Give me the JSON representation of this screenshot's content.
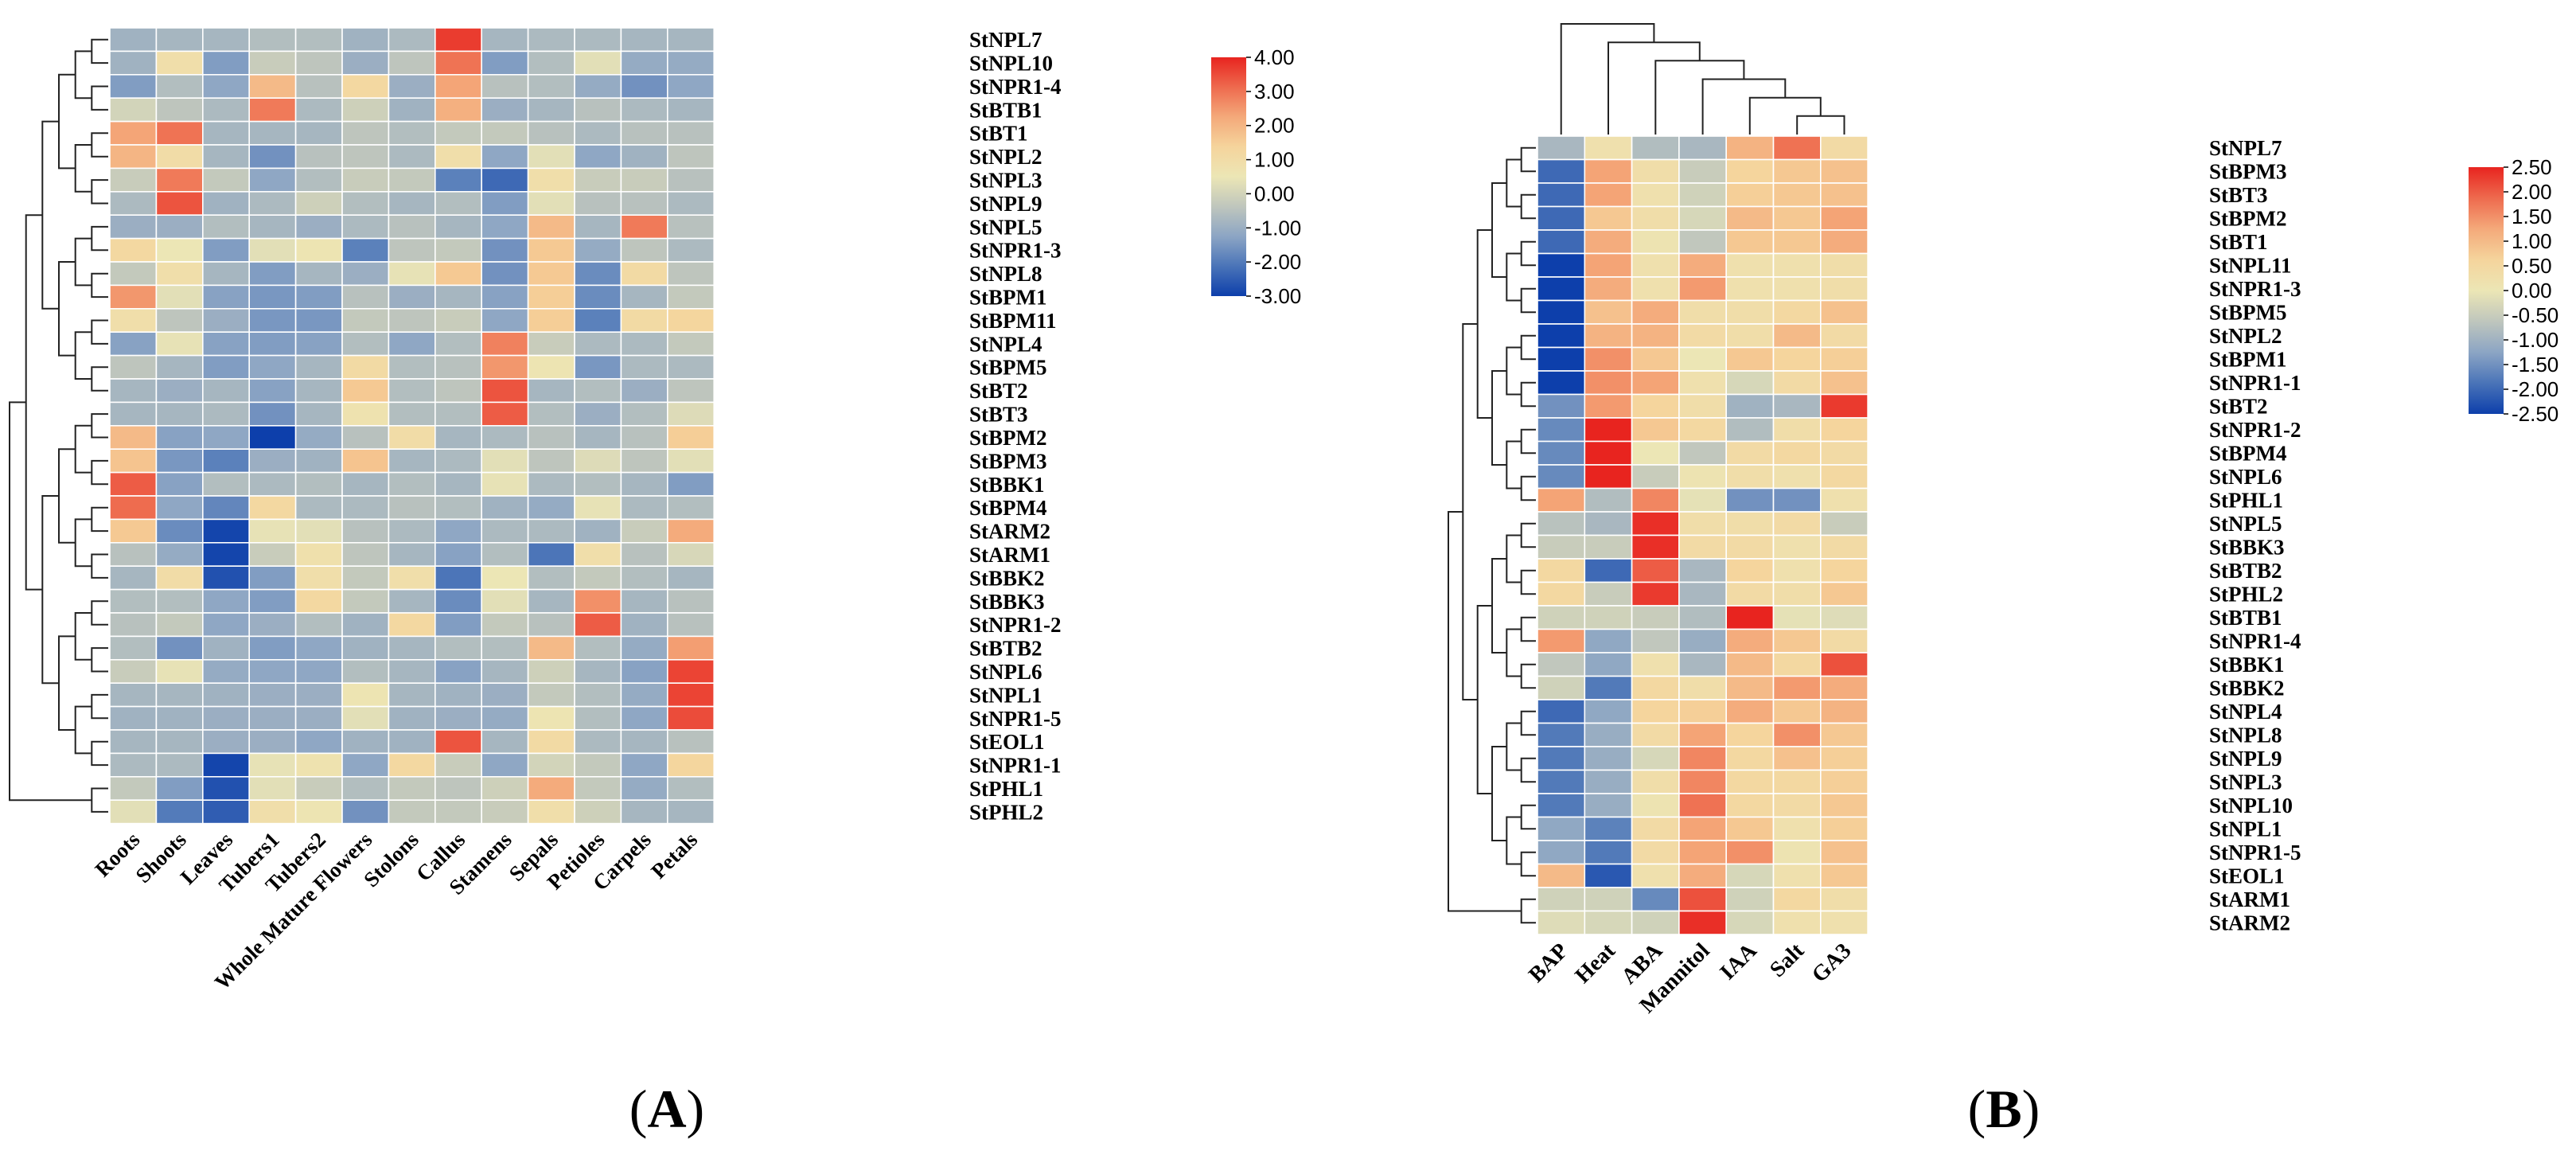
{
  "chart_data": [
    {
      "type": "heatmap",
      "panel": "(A)",
      "panel_letter": "A",
      "columns": [
        "Roots",
        "Shoots",
        "Leaves",
        "Tubers1",
        "Tubers2",
        "Whole Mature Flowers",
        "Stolons",
        "Callus",
        "Stamens",
        "Sepals",
        "Petioles",
        "Carpels",
        "Petals"
      ],
      "rows": [
        "StNPL7",
        "StNPL10",
        "StNPR1-4",
        "StBTB1",
        "StBT1",
        "StNPL2",
        "StNPL3",
        "StNPL9",
        "StNPL5",
        "StNPR1-3",
        "StNPL8",
        "StBPM1",
        "StBPM11",
        "StNPL4",
        "StBPM5",
        "StBT2",
        "StBT3",
        "StBPM2",
        "StBPM3",
        "StBBK1",
        "StBPM4",
        "StARM2",
        "StARM1",
        "StBBK2",
        "StBBK3",
        "StNPR1-2",
        "StBTB2",
        "StNPL6",
        "StNPL1",
        "StNPR1-5",
        "StEOL1",
        "StNPR1-1",
        "StPHL1",
        "StPHL2"
      ],
      "values": [
        [
          -0.9,
          -0.8,
          -0.8,
          -0.6,
          -0.6,
          -0.9,
          -0.7,
          3.7,
          -0.8,
          -0.7,
          -0.7,
          -0.8,
          -0.8
        ],
        [
          -0.9,
          0.9,
          -1.4,
          -0.2,
          -0.4,
          -1.0,
          -0.4,
          3.0,
          -1.4,
          -0.6,
          0.3,
          -1.1,
          -1.1
        ],
        [
          -1.4,
          -0.6,
          -1.2,
          1.9,
          -0.5,
          1.2,
          -1.0,
          2.3,
          -0.5,
          -0.6,
          -1.1,
          -1.6,
          -1.2
        ],
        [
          0.0,
          -0.4,
          -0.7,
          2.9,
          -0.7,
          -0.1,
          -0.9,
          2.1,
          -1.0,
          -0.8,
          -0.5,
          -0.7,
          -0.8
        ],
        [
          2.3,
          3.0,
          -0.8,
          -0.8,
          -0.8,
          -0.4,
          -0.6,
          -0.3,
          -0.3,
          -0.5,
          -0.7,
          -0.5,
          -0.5
        ],
        [
          2.0,
          1.0,
          -0.8,
          -1.6,
          -0.5,
          -0.4,
          -0.7,
          0.9,
          -1.2,
          0.3,
          -1.2,
          -0.9,
          -0.4
        ],
        [
          -0.2,
          2.9,
          -0.3,
          -1.2,
          -0.6,
          -0.2,
          -0.3,
          -1.9,
          -2.3,
          0.9,
          -0.2,
          -0.2,
          -0.5
        ],
        [
          -0.7,
          3.4,
          -0.9,
          -0.7,
          -0.1,
          -0.6,
          -0.8,
          -0.6,
          -1.4,
          0.3,
          -0.5,
          -0.5,
          -0.7
        ],
        [
          -1.0,
          -1.0,
          -0.6,
          -0.8,
          -1.0,
          -0.7,
          -0.5,
          -0.8,
          -1.2,
          1.9,
          -0.8,
          2.9,
          -0.5
        ],
        [
          1.2,
          0.5,
          -1.4,
          0.3,
          0.6,
          -1.9,
          -0.4,
          -0.3,
          -1.6,
          1.6,
          -1.1,
          -0.4,
          -0.7
        ],
        [
          -0.3,
          0.9,
          -0.8,
          -1.4,
          -0.8,
          -1.0,
          0.4,
          1.6,
          -1.6,
          1.6,
          -1.7,
          1.1,
          -0.4
        ],
        [
          2.5,
          0.3,
          -1.3,
          -1.5,
          -1.4,
          -0.5,
          -1.0,
          -0.8,
          -1.3,
          1.5,
          -1.7,
          -0.8,
          -0.3
        ],
        [
          0.9,
          -0.4,
          -1.0,
          -1.5,
          -1.5,
          -0.3,
          -0.4,
          -0.2,
          -1.2,
          1.5,
          -1.9,
          1.1,
          1.3
        ],
        [
          -1.3,
          0.4,
          -1.3,
          -1.4,
          -1.3,
          -0.6,
          -1.2,
          -0.6,
          2.8,
          -0.2,
          -0.7,
          -0.7,
          -0.3
        ],
        [
          -0.4,
          -0.8,
          -1.4,
          -1.2,
          -0.8,
          1.1,
          -0.6,
          -0.5,
          2.5,
          0.6,
          -1.5,
          -0.7,
          -0.7
        ],
        [
          -0.8,
          -1.0,
          -0.8,
          -1.3,
          -0.8,
          1.6,
          -0.6,
          -0.4,
          3.4,
          -0.8,
          -0.6,
          -1.0,
          -0.4
        ],
        [
          -0.8,
          -0.8,
          -0.7,
          -1.6,
          -0.8,
          0.7,
          -0.6,
          -0.6,
          3.3,
          -0.6,
          -1.0,
          -0.6,
          0.2
        ],
        [
          1.9,
          -1.3,
          -1.2,
          -3.0,
          -1.1,
          -0.5,
          1.0,
          -0.8,
          -0.7,
          -0.5,
          -0.8,
          -0.5,
          1.5
        ],
        [
          1.7,
          -1.5,
          -1.9,
          -1.0,
          -0.9,
          1.7,
          -0.8,
          -0.7,
          0.3,
          -0.4,
          0.2,
          -0.4,
          0.3
        ],
        [
          3.3,
          -1.3,
          -0.6,
          -0.7,
          -0.6,
          -0.8,
          -0.6,
          -0.8,
          0.4,
          -0.7,
          -0.6,
          -0.8,
          -1.4
        ],
        [
          3.1,
          -1.2,
          -1.8,
          1.2,
          -0.7,
          -0.7,
          -0.5,
          -0.6,
          -0.9,
          -1.1,
          0.4,
          -0.7,
          -0.6
        ],
        [
          1.6,
          -1.7,
          -2.9,
          0.4,
          0.3,
          -0.5,
          -0.7,
          -1.2,
          -0.7,
          -0.7,
          -0.9,
          -0.2,
          2.2
        ],
        [
          -0.5,
          -1.1,
          -2.9,
          -0.2,
          0.8,
          -0.4,
          -0.8,
          -1.3,
          -0.6,
          -2.1,
          0.9,
          -0.5,
          0.1
        ],
        [
          -0.8,
          1.0,
          -2.7,
          -1.4,
          0.9,
          -0.3,
          0.9,
          -2.1,
          0.5,
          -0.6,
          -0.3,
          -0.6,
          -0.8
        ],
        [
          -0.6,
          -0.6,
          -1.2,
          -1.4,
          1.2,
          -0.3,
          -0.8,
          -1.7,
          0.3,
          -0.8,
          2.6,
          -0.8,
          -0.5
        ],
        [
          -0.5,
          -0.3,
          -1.2,
          -1.0,
          -0.6,
          -0.9,
          1.2,
          -1.4,
          -0.3,
          -0.5,
          3.3,
          -0.9,
          -0.5
        ],
        [
          -0.6,
          -1.6,
          -0.9,
          -1.4,
          -1.2,
          -0.9,
          -0.8,
          -0.6,
          -0.6,
          1.9,
          -0.6,
          -1.1,
          2.4
        ],
        [
          -0.2,
          0.4,
          -1.1,
          -1.2,
          -1.2,
          -0.6,
          -0.8,
          -1.3,
          -0.8,
          -0.1,
          -0.8,
          -1.3,
          3.6
        ],
        [
          -0.8,
          -0.8,
          -0.9,
          -1.0,
          -1.0,
          0.6,
          -0.8,
          -0.9,
          -1.0,
          -0.3,
          -0.6,
          -1.1,
          3.6
        ],
        [
          -0.9,
          -0.9,
          -1.0,
          -1.0,
          -1.0,
          0.3,
          -0.9,
          -1.0,
          -1.1,
          0.6,
          -0.6,
          -1.2,
          3.5
        ],
        [
          -0.8,
          -0.8,
          -1.0,
          -1.0,
          -1.2,
          -0.9,
          -0.9,
          3.4,
          -0.8,
          1.1,
          -0.7,
          -0.8,
          -0.5
        ],
        [
          -0.7,
          -0.7,
          -2.9,
          0.4,
          0.7,
          -1.2,
          1.2,
          -0.2,
          -1.2,
          0.0,
          -0.3,
          -1.2,
          1.3
        ],
        [
          -0.3,
          -1.4,
          -2.7,
          0.3,
          -0.2,
          -0.6,
          -0.3,
          -0.4,
          -0.1,
          2.2,
          -0.3,
          -1.1,
          -0.6
        ],
        [
          0.3,
          -2.0,
          -2.5,
          0.9,
          0.6,
          -1.6,
          -0.3,
          -0.3,
          -0.2,
          0.9,
          -0.1,
          -0.8,
          -0.8
        ]
      ],
      "colorbar": {
        "ticks": [
          "4.00",
          "3.00",
          "2.00",
          "1.00",
          "0.00",
          "-1.00",
          "-2.00",
          "-3.00"
        ],
        "min": -3.0,
        "max": 4.0
      },
      "colormap": [
        "#0d3fab",
        "#4a74b8",
        "#8ca5c4",
        "#bfc6bd",
        "#ece6b5",
        "#f5d49c",
        "#f4a97a",
        "#ee6a4e",
        "#e8241f"
      ],
      "row_dendrogram": "left",
      "col_dendrogram": "none"
    },
    {
      "type": "heatmap",
      "panel": "(B)",
      "panel_letter": "B",
      "columns": [
        "BAP",
        "Heat",
        "ABA",
        "Mannitol",
        "IAA",
        "Salt",
        "GA3"
      ],
      "rows": [
        "StNPL7",
        "StBPM3",
        "StBT3",
        "StBPM2",
        "StBT1",
        "StNPL11",
        "StNPR1-3",
        "StBPM5",
        "StNPL2",
        "StBPM1",
        "StNPR1-1",
        "StBT2",
        "StNPR1-2",
        "StBPM4",
        "StNPL6",
        "StPHL1",
        "StNPL5",
        "StBBK3",
        "StBTB2",
        "StPHL2",
        "StBTB1",
        "StNPR1-4",
        "StBBK1",
        "StBBK2",
        "StNPL4",
        "StNPL8",
        "StNPL9",
        "StNPL3",
        "StNPL10",
        "StNPL1",
        "StNPR1-5",
        "StEOL1",
        "StARM1",
        "StARM2"
      ],
      "values": [
        [
          -0.9,
          0.2,
          -0.8,
          -0.9,
          1.1,
          1.8,
          0.4
        ],
        [
          -2.0,
          1.3,
          0.3,
          -0.5,
          0.6,
          0.8,
          0.9
        ],
        [
          -2.0,
          1.3,
          0.2,
          -0.4,
          0.7,
          0.8,
          0.9
        ],
        [
          -2.0,
          0.8,
          0.3,
          -0.3,
          1.0,
          0.8,
          1.3
        ],
        [
          -2.0,
          1.2,
          0.1,
          -0.6,
          0.8,
          0.8,
          1.2
        ],
        [
          -2.5,
          1.3,
          0.2,
          1.2,
          0.2,
          0.2,
          0.3
        ],
        [
          -2.5,
          1.2,
          0.2,
          1.4,
          0.2,
          0.2,
          0.3
        ],
        [
          -2.5,
          0.9,
          1.2,
          0.3,
          0.3,
          0.5,
          0.9
        ],
        [
          -2.5,
          1.1,
          1.1,
          0.4,
          0.3,
          1.0,
          0.4
        ],
        [
          -2.5,
          1.5,
          0.8,
          0.0,
          0.8,
          0.6,
          0.7
        ],
        [
          -2.5,
          1.5,
          1.3,
          0.2,
          -0.3,
          0.4,
          0.9
        ],
        [
          -1.5,
          1.4,
          0.6,
          0.3,
          -1.0,
          -0.9,
          2.3
        ],
        [
          -1.6,
          2.5,
          0.8,
          0.5,
          -0.8,
          0.3,
          0.6
        ],
        [
          -1.6,
          2.5,
          0.0,
          -0.6,
          0.4,
          0.5,
          0.4
        ],
        [
          -1.6,
          2.5,
          -0.5,
          0.1,
          0.3,
          0.2,
          0.5
        ],
        [
          1.3,
          -0.8,
          1.6,
          -0.1,
          -1.5,
          -1.5,
          0.2
        ],
        [
          -0.7,
          -0.9,
          2.4,
          0.3,
          0.3,
          0.4,
          -0.5
        ],
        [
          -0.5,
          -0.5,
          2.4,
          0.4,
          0.4,
          0.2,
          0.4
        ],
        [
          0.5,
          -2.0,
          2.0,
          -0.9,
          0.6,
          0.2,
          0.6
        ],
        [
          0.5,
          -0.5,
          2.3,
          -0.9,
          0.4,
          0.3,
          0.8
        ],
        [
          -0.4,
          -0.4,
          -0.5,
          -0.8,
          2.6,
          -0.1,
          -0.2
        ],
        [
          1.4,
          -1.2,
          -0.6,
          -1.1,
          1.2,
          0.8,
          0.4
        ],
        [
          -0.6,
          -1.2,
          0.2,
          -0.9,
          1.0,
          0.5,
          2.1
        ],
        [
          -0.4,
          -1.8,
          0.5,
          0.3,
          1.0,
          1.4,
          1.2
        ],
        [
          -2.0,
          -1.2,
          0.6,
          0.7,
          1.2,
          0.8,
          1.1
        ],
        [
          -1.8,
          -1.1,
          0.4,
          1.3,
          0.6,
          1.5,
          0.8
        ],
        [
          -1.8,
          -1.1,
          -0.3,
          1.6,
          0.5,
          0.9,
          0.7
        ],
        [
          -1.8,
          -1.1,
          0.3,
          1.6,
          0.5,
          0.5,
          0.7
        ],
        [
          -1.8,
          -1.1,
          0.1,
          1.8,
          0.5,
          0.4,
          0.8
        ],
        [
          -1.2,
          -1.7,
          0.4,
          1.3,
          0.8,
          0.2,
          0.7
        ],
        [
          -1.2,
          -1.8,
          0.4,
          1.3,
          1.5,
          0.1,
          0.9
        ],
        [
          1.0,
          -2.2,
          0.2,
          1.2,
          -0.3,
          0.2,
          0.8
        ],
        [
          -0.4,
          -0.4,
          -1.6,
          2.1,
          -0.4,
          0.5,
          0.3
        ],
        [
          -0.2,
          -0.3,
          -0.4,
          2.4,
          -0.3,
          0.2,
          0.2
        ]
      ],
      "colorbar": {
        "ticks": [
          "2.50",
          "2.00",
          "1.50",
          "1.00",
          "0.50",
          "0.00",
          "-0.50",
          "-1.00",
          "-1.50",
          "-2.00",
          "-2.50"
        ],
        "min": -2.5,
        "max": 2.5
      },
      "colormap": [
        "#0d3fab",
        "#4a74b8",
        "#8ca5c4",
        "#bfc6bd",
        "#ece6b5",
        "#f5d49c",
        "#f4a97a",
        "#ee6a4e",
        "#e8241f"
      ],
      "row_dendrogram": "left",
      "col_dendrogram": "top"
    }
  ]
}
